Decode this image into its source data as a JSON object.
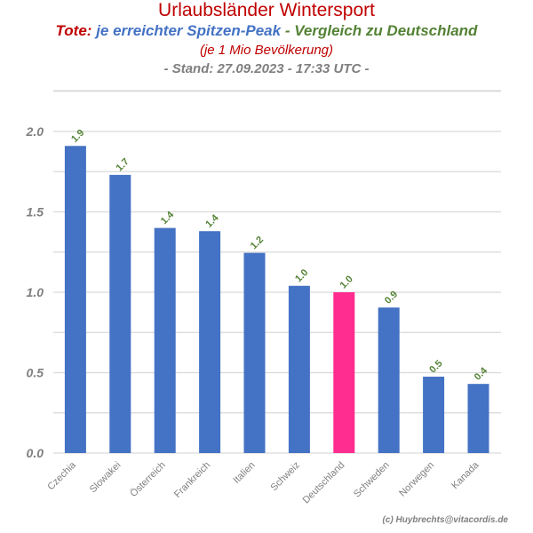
{
  "header": {
    "title": "Urlaubsländer Wintersport",
    "tote": "Tote:",
    "peak": "je erreichter Spitzen-Peak",
    "compare": "- Vergleich zu Deutschland",
    "per_million": "(je 1 Mio Bevölkerung)",
    "stand": "- Stand: 27.09.2023 - 17:33 UTC -"
  },
  "credit": "(c) Huybrechts@vitacordis.de",
  "colors": {
    "bar": "#4472c4",
    "highlight": "#ff2d8f",
    "label": "#548235",
    "grid": "#d9d9d9"
  },
  "chart_data": {
    "type": "bar",
    "categories": [
      "Czechia",
      "Slowakei",
      "Österreich",
      "Frankreich",
      "Italien",
      "Schweiz",
      "Deutschland",
      "Schweden",
      "Norwegen",
      "Kanada"
    ],
    "values": [
      1.91,
      1.73,
      1.4,
      1.38,
      1.245,
      1.04,
      1.0,
      0.905,
      0.475,
      0.43
    ],
    "data_labels": [
      "1.9",
      "1.7",
      "1.4",
      "1.4",
      "1.2",
      "1.0",
      "1.0",
      "0.9",
      "0.5",
      "0.4"
    ],
    "highlight": "Deutschland",
    "ylim": [
      0,
      2.25
    ],
    "yticks": [
      0.0,
      0.5,
      1.0,
      1.5,
      2.0
    ],
    "ytick_labels": [
      "0.0",
      "0.5",
      "1.0",
      "1.5",
      "2.0"
    ],
    "grid": true,
    "xlabel": "",
    "ylabel": ""
  }
}
